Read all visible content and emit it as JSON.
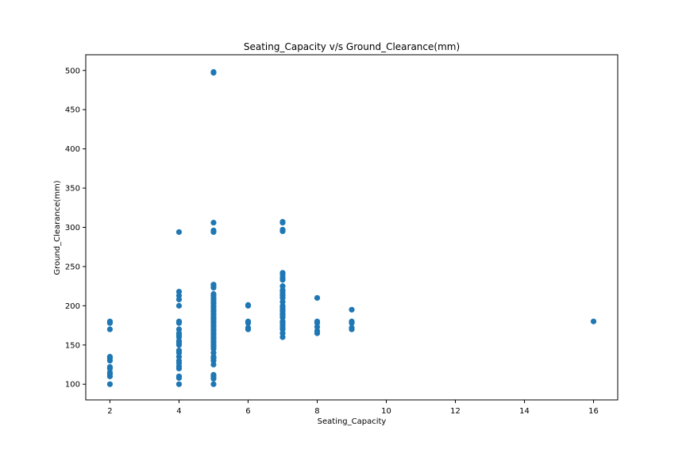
{
  "chart_data": {
    "type": "scatter",
    "title": "Seating_Capacity v/s Ground_Clearance(mm)",
    "xlabel": "Seating_Capacity",
    "ylabel": "Ground_Clearance(mm)",
    "xlim": [
      1.3,
      16.7
    ],
    "ylim": [
      80,
      520
    ],
    "xticks": [
      2,
      4,
      6,
      8,
      10,
      12,
      14,
      16
    ],
    "yticks": [
      100,
      150,
      200,
      250,
      300,
      350,
      400,
      450,
      500
    ],
    "grid": false,
    "legend": "none",
    "marker_color": "#1f77b4",
    "points": [
      [
        2,
        100
      ],
      [
        2,
        110
      ],
      [
        2,
        113
      ],
      [
        2,
        115
      ],
      [
        2,
        120
      ],
      [
        2,
        122
      ],
      [
        2,
        130
      ],
      [
        2,
        133
      ],
      [
        2,
        135
      ],
      [
        2,
        170
      ],
      [
        2,
        178
      ],
      [
        2,
        180
      ],
      [
        4,
        100
      ],
      [
        4,
        108
      ],
      [
        4,
        110
      ],
      [
        4,
        120
      ],
      [
        4,
        123
      ],
      [
        4,
        127
      ],
      [
        4,
        130
      ],
      [
        4,
        135
      ],
      [
        4,
        140
      ],
      [
        4,
        143
      ],
      [
        4,
        150
      ],
      [
        4,
        153
      ],
      [
        4,
        155
      ],
      [
        4,
        160
      ],
      [
        4,
        163
      ],
      [
        4,
        165
      ],
      [
        4,
        170
      ],
      [
        4,
        178
      ],
      [
        4,
        180
      ],
      [
        4,
        200
      ],
      [
        4,
        208
      ],
      [
        4,
        213
      ],
      [
        4,
        218
      ],
      [
        4,
        294
      ],
      [
        5,
        100
      ],
      [
        5,
        107
      ],
      [
        5,
        110
      ],
      [
        5,
        112
      ],
      [
        5,
        125
      ],
      [
        5,
        130
      ],
      [
        5,
        133
      ],
      [
        5,
        135
      ],
      [
        5,
        140
      ],
      [
        5,
        145
      ],
      [
        5,
        148
      ],
      [
        5,
        150
      ],
      [
        5,
        153
      ],
      [
        5,
        155
      ],
      [
        5,
        158
      ],
      [
        5,
        160
      ],
      [
        5,
        163
      ],
      [
        5,
        165
      ],
      [
        5,
        168
      ],
      [
        5,
        170
      ],
      [
        5,
        173
      ],
      [
        5,
        175
      ],
      [
        5,
        178
      ],
      [
        5,
        180
      ],
      [
        5,
        183
      ],
      [
        5,
        185
      ],
      [
        5,
        188
      ],
      [
        5,
        190
      ],
      [
        5,
        193
      ],
      [
        5,
        195
      ],
      [
        5,
        198
      ],
      [
        5,
        200
      ],
      [
        5,
        203
      ],
      [
        5,
        205
      ],
      [
        5,
        208
      ],
      [
        5,
        210
      ],
      [
        5,
        213
      ],
      [
        5,
        215
      ],
      [
        5,
        223
      ],
      [
        5,
        226
      ],
      [
        5,
        227
      ],
      [
        5,
        294
      ],
      [
        5,
        296
      ],
      [
        5,
        306
      ],
      [
        5,
        497
      ],
      [
        5,
        498
      ],
      [
        6,
        170
      ],
      [
        6,
        172
      ],
      [
        6,
        178
      ],
      [
        6,
        180
      ],
      [
        6,
        200
      ],
      [
        6,
        201
      ],
      [
        7,
        160
      ],
      [
        7,
        165
      ],
      [
        7,
        170
      ],
      [
        7,
        172
      ],
      [
        7,
        175
      ],
      [
        7,
        178
      ],
      [
        7,
        180
      ],
      [
        7,
        185
      ],
      [
        7,
        188
      ],
      [
        7,
        190
      ],
      [
        7,
        193
      ],
      [
        7,
        195
      ],
      [
        7,
        198
      ],
      [
        7,
        200
      ],
      [
        7,
        205
      ],
      [
        7,
        210
      ],
      [
        7,
        213
      ],
      [
        7,
        215
      ],
      [
        7,
        218
      ],
      [
        7,
        220
      ],
      [
        7,
        225
      ],
      [
        7,
        233
      ],
      [
        7,
        236
      ],
      [
        7,
        240
      ],
      [
        7,
        242
      ],
      [
        7,
        295
      ],
      [
        7,
        297
      ],
      [
        7,
        306
      ],
      [
        7,
        307
      ],
      [
        8,
        165
      ],
      [
        8,
        168
      ],
      [
        8,
        173
      ],
      [
        8,
        178
      ],
      [
        8,
        180
      ],
      [
        8,
        210
      ],
      [
        9,
        170
      ],
      [
        9,
        172
      ],
      [
        9,
        178
      ],
      [
        9,
        180
      ],
      [
        9,
        195
      ],
      [
        16,
        180
      ]
    ]
  }
}
